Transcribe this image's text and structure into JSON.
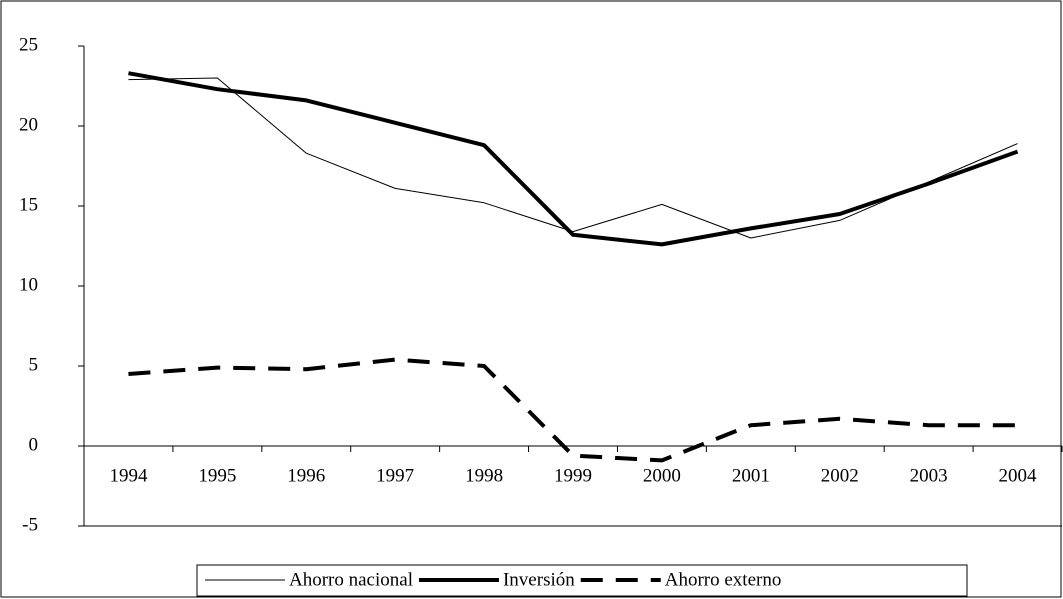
{
  "chart_data": {
    "type": "line",
    "categories": [
      "1994",
      "1995",
      "1996",
      "1997",
      "1998",
      "1999",
      "2000",
      "2001",
      "2002",
      "2003",
      "2004"
    ],
    "series": [
      {
        "name": "Ahorro nacional",
        "color": "#000000",
        "style": "thin",
        "values": [
          22.9,
          23.0,
          18.3,
          16.1,
          15.2,
          13.4,
          15.1,
          13.0,
          14.1,
          16.5,
          18.9
        ]
      },
      {
        "name": "Inversión",
        "color": "#000000",
        "style": "thick",
        "values": [
          23.3,
          22.3,
          21.6,
          20.2,
          18.8,
          13.2,
          12.6,
          13.6,
          14.5,
          16.4,
          18.4
        ]
      },
      {
        "name": "Ahorro externo",
        "color": "#000000",
        "style": "dashed",
        "values": [
          4.5,
          4.9,
          4.8,
          5.4,
          5.0,
          -0.6,
          -0.9,
          1.3,
          1.7,
          1.3,
          1.3
        ]
      }
    ],
    "ylim": [
      -5,
      25
    ],
    "yticks": [
      -5,
      0,
      5,
      10,
      15,
      20,
      25
    ],
    "grid": false,
    "legend": "bottom"
  }
}
